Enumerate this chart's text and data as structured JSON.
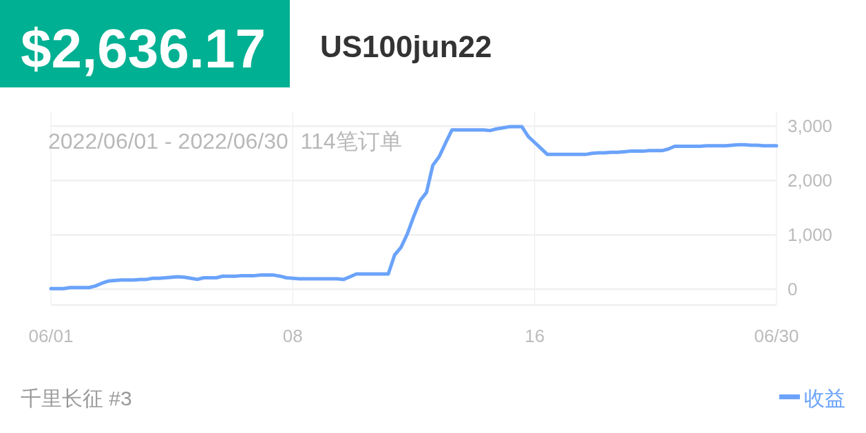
{
  "chart_data": {
    "type": "line",
    "title": "US100jun22",
    "subtitle": "2022/06/01 - 2022/06/30  114笔订单",
    "annotations": [
      "$2,636.17",
      "千里长征 #3"
    ],
    "categories": [
      "06/01",
      null,
      null,
      null,
      null,
      null,
      null,
      null,
      null,
      null,
      null,
      null,
      null,
      null,
      null,
      null,
      null,
      null,
      null,
      null,
      null,
      null,
      null,
      null,
      null,
      null,
      null,
      null,
      null,
      null,
      null,
      null,
      null,
      null,
      null,
      null,
      null,
      null,
      "08",
      null,
      null,
      null,
      null,
      null,
      null,
      null,
      null,
      null,
      null,
      null,
      null,
      null,
      null,
      null,
      null,
      null,
      null,
      null,
      null,
      null,
      null,
      null,
      null,
      null,
      null,
      null,
      null,
      null,
      null,
      null,
      null,
      null,
      null,
      null,
      null,
      null,
      "16",
      null,
      null,
      null,
      null,
      null,
      null,
      null,
      null,
      null,
      null,
      null,
      null,
      null,
      null,
      null,
      null,
      null,
      null,
      null,
      null,
      null,
      null,
      null,
      null,
      null,
      null,
      null,
      null,
      null,
      null,
      null,
      null,
      null,
      null,
      null,
      null,
      null,
      "06/30"
    ],
    "series": [
      {
        "name": "收益",
        "color": "#6ba3fa",
        "values": [
          10,
          10,
          10,
          30,
          30,
          30,
          30,
          60,
          110,
          150,
          160,
          170,
          170,
          170,
          180,
          180,
          200,
          200,
          210,
          220,
          230,
          220,
          200,
          180,
          210,
          210,
          210,
          240,
          240,
          240,
          250,
          250,
          250,
          260,
          260,
          260,
          240,
          210,
          200,
          190,
          190,
          190,
          190,
          190,
          190,
          190,
          180,
          230,
          280,
          280,
          280,
          280,
          280,
          280,
          630,
          770,
          1020,
          1340,
          1630,
          1780,
          2280,
          2440,
          2690,
          2930,
          2930,
          2930,
          2930,
          2930,
          2930,
          2920,
          2950,
          2970,
          2990,
          2990,
          2990,
          2810,
          2700,
          2590,
          2480,
          2480,
          2480,
          2480,
          2480,
          2480,
          2480,
          2500,
          2510,
          2510,
          2520,
          2520,
          2530,
          2540,
          2540,
          2540,
          2550,
          2550,
          2550,
          2580,
          2630,
          2630,
          2630,
          2630,
          2630,
          2640,
          2640,
          2640,
          2640,
          2650,
          2660,
          2660,
          2650,
          2650,
          2640,
          2640,
          2640
        ]
      }
    ],
    "ylim": [
      -290,
      3270
    ],
    "yticks": [
      0,
      {
        "value": 1000,
        "label": "1,000"
      },
      {
        "value": 2000,
        "label": "2,000"
      },
      {
        "value": 3000,
        "label": "3,000"
      }
    ],
    "grid": true,
    "legend": "bottom right"
  }
}
